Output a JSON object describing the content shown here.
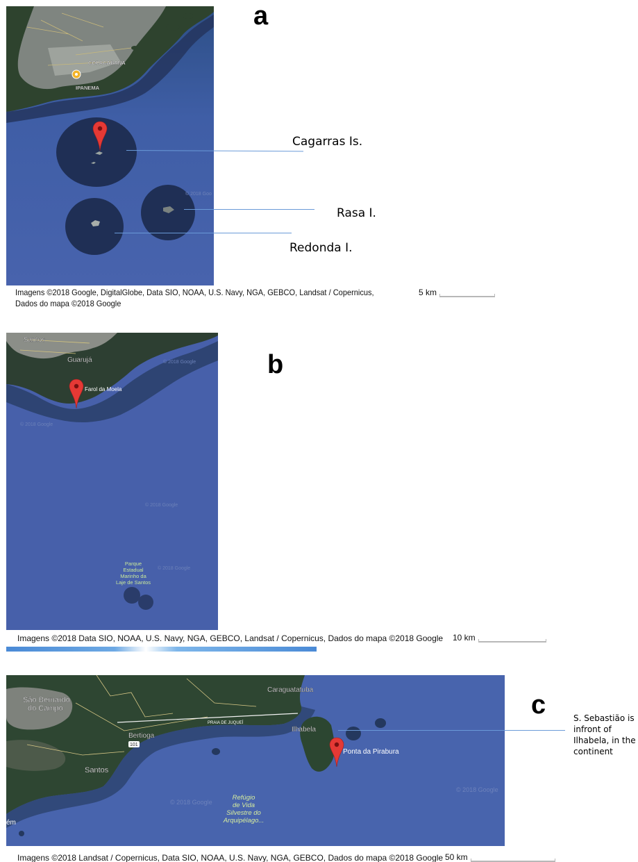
{
  "panels": {
    "a": {
      "letter": "a",
      "map_labels": {
        "copacabana": "COPACABANA",
        "ipanema": "IPANEMA",
        "watermark": "© 2018 Goo"
      },
      "callouts": {
        "cagarras": "Cagarras Is.",
        "rasa": "Rasa I.",
        "redonda": "Redonda I."
      },
      "attribution": "Imagens ©2018 Google, DigitalGlobe, Data SIO, NOAA, U.S. Navy, NGA, GEBCO, Landsat / Copernicus, Dados do mapa ©2018 Google",
      "scale_label": "5 km",
      "marker_icon": "map-pin-icon"
    },
    "b": {
      "letter": "b",
      "map_labels": {
        "santos": "Santos",
        "guaruja": "Guarujá",
        "farol": "Farol da Moela",
        "parque_line1": "Parque",
        "parque_line2": "Estadual",
        "parque_line3": "Marinho da",
        "parque_line4": "Laje de Santos",
        "watermark": "© 2018 Google"
      },
      "attribution": "Imagens ©2018 Data SIO, NOAA, U.S. Navy, NGA, GEBCO, Landsat / Copernicus, Dados do mapa ©2018 Google",
      "scale_label": "10 km",
      "marker_icon": "map-pin-icon"
    },
    "c": {
      "letter": "c",
      "map_labels": {
        "sao_bernardo_line1": "São Bernardo",
        "sao_bernardo_line2": "do Campo",
        "caraguatatuba": "Caraguatatuba",
        "praia_juquei": "PRAIA DE JUQUEÍ",
        "bertioga": "Bertioga",
        "route": "101",
        "ilhabela": "Ilhabela",
        "ponta": "Ponta da Pirabura",
        "santos": "Santos",
        "refugio_line1": "Refúgio",
        "refugio_line2": "de Vida",
        "refugio_line3": "Silvestre do",
        "refugio_line4": "Arquipélago...",
        "edge": "ém",
        "watermark": "© 2018 Google"
      },
      "callouts": {
        "sebastiao": "S. Sebastião is infront of Ilhabela, in the continent"
      },
      "attribution": "Imagens ©2018 Landsat / Copernicus, Data SIO, NOAA, U.S. Navy, NGA, GEBCO, Dados do mapa ©2018 Google",
      "scale_label": "50 km",
      "marker_icon": "map-pin-icon"
    }
  },
  "colors": {
    "ocean": "#4460a8",
    "ocean_dark": "#203a70",
    "land": "#2c4a2e",
    "urban": "#8a8a86",
    "marker": "#e53935",
    "leader": "#6a9ad8"
  }
}
